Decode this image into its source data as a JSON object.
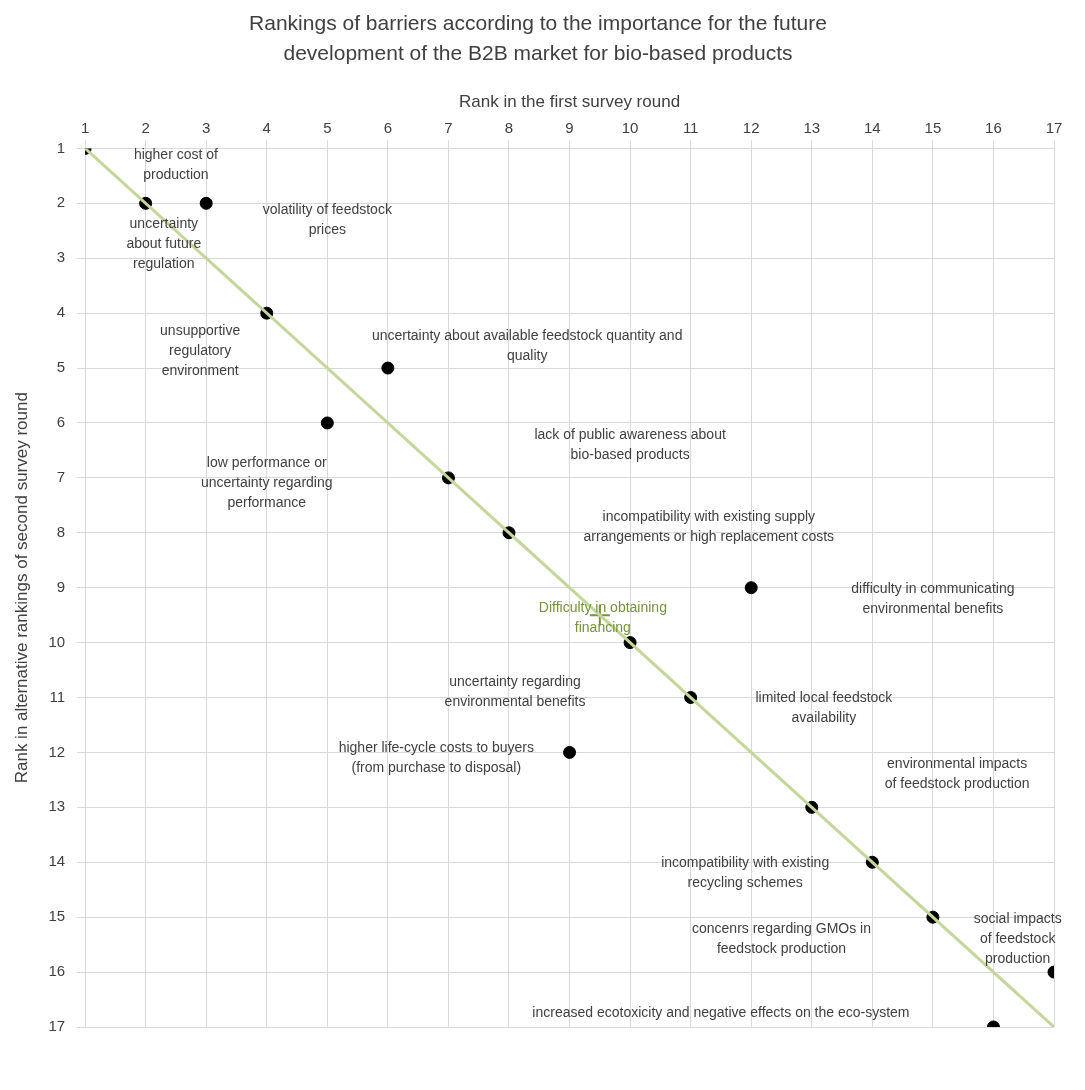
{
  "chart_data": {
    "type": "scatter",
    "title": "Rankings of barriers according to the importance for the future development of the B2B market for bio-based products",
    "xlabel": "Rank in the first survey round",
    "ylabel": "Rank in alternative rankings of second survey round",
    "xlim": [
      1,
      17
    ],
    "xticks": [
      1,
      2,
      3,
      4,
      5,
      6,
      7,
      8,
      9,
      10,
      11,
      12,
      13,
      14,
      15,
      16,
      17
    ],
    "ylim": [
      17,
      1
    ],
    "yticks": [
      1,
      2,
      3,
      4,
      5,
      6,
      7,
      8,
      9,
      10,
      11,
      12,
      13,
      14,
      15,
      16,
      17
    ],
    "grid": true,
    "legend": false,
    "series": [
      {
        "type": "line",
        "color": "#c4d79b",
        "marker": "none",
        "line_style": "solid",
        "x": [
          1,
          17
        ],
        "values": [
          1,
          17
        ]
      },
      {
        "type": "scatter",
        "color": "#000000",
        "marker": "circle",
        "x": [
          1,
          2,
          3,
          4,
          6,
          5,
          7,
          8,
          12,
          10,
          11,
          9,
          13,
          14,
          15,
          17,
          16
        ],
        "values": [
          1,
          2,
          2,
          4,
          5,
          6,
          7,
          8,
          9,
          10,
          11,
          12,
          13,
          14,
          15,
          16,
          17
        ]
      },
      {
        "type": "scatter",
        "color": "#76923c",
        "marker": "cross",
        "x": [
          9.5
        ],
        "values": [
          9.5
        ]
      }
    ],
    "annotations": [
      "higher cost of production",
      "volatility of feedstock prices",
      "uncertainty about future regulation",
      "unsupportive regulatory environment",
      "uncertainty about available feedstock quantity and quality",
      "low performance or uncertainty regarding performance",
      "lack of public awareness about bio-based products",
      "incompatibility with existing supply arrangements or high replacement costs",
      "difficulty in communicating environmental benefits",
      {
        "text": "Difficulty in obtaining financing",
        "x": 9.5,
        "y": 9.5
      },
      "uncertainty regarding environmental benefits",
      "limited local feedstock availability",
      "higher life-cycle costs to buyers (from purchase to disposal)",
      "environmental impacts of feedstock production",
      "incompatibility with existing recycling schemes",
      "concenrs regarding GMOs in feedstock production",
      "social impacts of feedstock production",
      "increased ecotoxicity and negative effects on the eco-system"
    ]
  }
}
